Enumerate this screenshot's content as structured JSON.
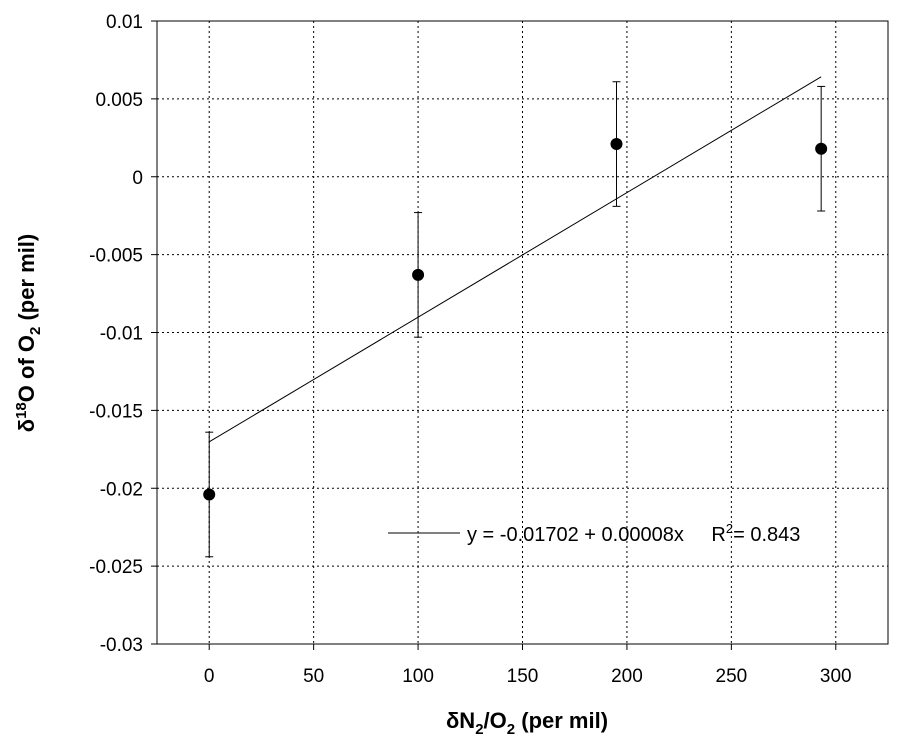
{
  "chart_data": {
    "type": "scatter",
    "xlim": [
      -25,
      325
    ],
    "ylim": [
      -0.03,
      0.01
    ],
    "x_ticks": [
      "0",
      "50",
      "100",
      "150",
      "200",
      "250",
      "300"
    ],
    "y_ticks": [
      "0.01",
      "0.005",
      "0",
      "-0.005",
      "-0.01",
      "-0.015",
      "-0.02",
      "-0.025",
      "-0.03"
    ],
    "grid": true,
    "xlabel": {
      "prefix": "δN",
      "sub1": "2",
      "mid": "/O",
      "sub2": "2",
      "suffix": " (per mil)"
    },
    "ylabel": {
      "prefix": "δ",
      "sup": "18",
      "mid": "O of O",
      "sub": "2",
      "suffix": " (per mil)"
    },
    "points": [
      {
        "x": 0,
        "y": -0.0204,
        "err": 0.004
      },
      {
        "x": 100,
        "y": -0.0063,
        "err": 0.004
      },
      {
        "x": 195,
        "y": 0.0021,
        "err": 0.004
      },
      {
        "x": 293,
        "y": 0.0018,
        "err": 0.004
      }
    ],
    "fit": {
      "intercept": -0.01702,
      "slope": 8e-05,
      "x_range": [
        0,
        293
      ]
    },
    "legend": {
      "equation": "y = -0.01702 + 0.00008x",
      "r2_prefix": "R",
      "r2_sup": "2",
      "r2_value": "= 0.843"
    },
    "colors": {
      "marker": "#000000",
      "grid": "#000000",
      "line": "#000000"
    }
  }
}
